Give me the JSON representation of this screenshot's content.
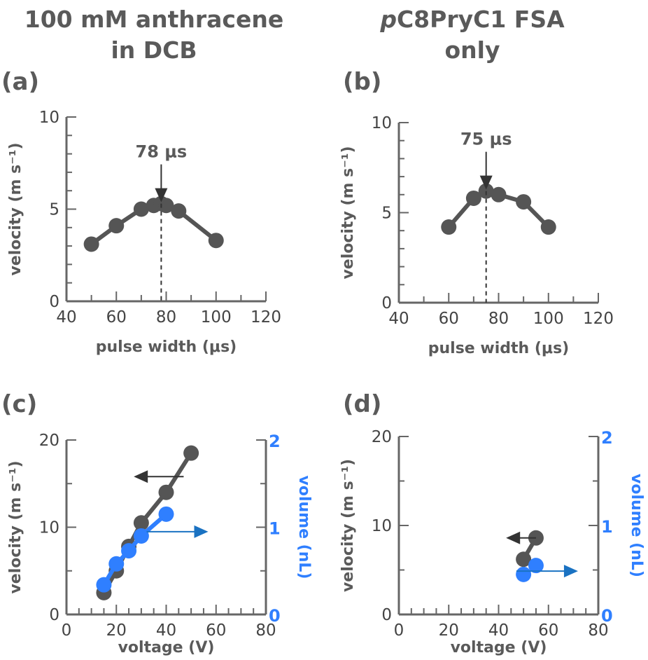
{
  "columns": {
    "left": {
      "line1": "100 mM anthracene",
      "line2": "in DCB"
    },
    "right": {
      "line1_italic": "p",
      "line1_rest": "C8PryC1 FSA",
      "line2": "only"
    }
  },
  "colors": {
    "gray_series": "#555555",
    "blue_series": "#2f7fff",
    "blue_arrow": "#1a72c2",
    "axis": "#666666"
  },
  "chart_data": [
    {
      "panel": "(a)",
      "type": "line",
      "xlabel": "pulse width (μs)",
      "ylabel": "velocity (m s⁻¹)",
      "xlim": [
        40,
        120
      ],
      "ylim": [
        0,
        10
      ],
      "xticks": [
        40,
        60,
        80,
        100,
        120
      ],
      "yticks": [
        0,
        5,
        10
      ],
      "series": [
        {
          "x": [
            50,
            60,
            70,
            75,
            78,
            80,
            85,
            100
          ],
          "y": [
            3.1,
            4.1,
            5.0,
            5.2,
            5.3,
            5.2,
            4.9,
            3.3
          ]
        }
      ],
      "annotation": {
        "label": "78 μs",
        "x": 78
      }
    },
    {
      "panel": "(b)",
      "type": "line",
      "xlabel": "pulse width (μs)",
      "ylabel": "velocity (m s⁻¹)",
      "xlim": [
        40,
        120
      ],
      "ylim": [
        0,
        10
      ],
      "xticks": [
        40,
        60,
        80,
        100,
        120
      ],
      "yticks": [
        0,
        5,
        10
      ],
      "series": [
        {
          "x": [
            60,
            70,
            75,
            80,
            90,
            100
          ],
          "y": [
            4.2,
            5.8,
            6.2,
            6.0,
            5.6,
            4.2
          ]
        }
      ],
      "annotation": {
        "label": "75 μs",
        "x": 75
      }
    },
    {
      "panel": "(c)",
      "type": "line",
      "xlabel": "voltage (V)",
      "ylabel": "velocity (m s⁻¹)",
      "y2label": "volume (nL)",
      "xlim": [
        0,
        80
      ],
      "ylim": [
        0,
        20
      ],
      "y2lim": [
        0,
        2
      ],
      "xticks": [
        0,
        20,
        40,
        60,
        80
      ],
      "yticks": [
        0,
        10,
        20
      ],
      "y2ticks": [
        0,
        1,
        2
      ],
      "series": [
        {
          "axis": "left",
          "color": "gray",
          "x": [
            15,
            20,
            25,
            30,
            40,
            50
          ],
          "y": [
            2.5,
            5.0,
            7.8,
            10.5,
            14.0,
            18.5
          ]
        },
        {
          "axis": "right",
          "color": "blue",
          "x": [
            15,
            20,
            25,
            30,
            40
          ],
          "y": [
            0.34,
            0.58,
            0.73,
            0.9,
            1.15
          ]
        }
      ]
    },
    {
      "panel": "(d)",
      "type": "scatter",
      "xlabel": "voltage (V)",
      "ylabel": "velocity (m s⁻¹)",
      "y2label": "volume (nL)",
      "xlim": [
        0,
        80
      ],
      "ylim": [
        0,
        20
      ],
      "y2lim": [
        0,
        2
      ],
      "xticks": [
        0,
        20,
        40,
        60,
        80
      ],
      "yticks": [
        0,
        10,
        20
      ],
      "y2ticks": [
        0,
        1,
        2
      ],
      "series": [
        {
          "axis": "left",
          "color": "gray",
          "x": [
            50,
            55
          ],
          "y": [
            6.2,
            8.6
          ]
        },
        {
          "axis": "right",
          "color": "blue",
          "x": [
            50,
            55
          ],
          "y": [
            0.45,
            0.55
          ]
        }
      ]
    }
  ]
}
